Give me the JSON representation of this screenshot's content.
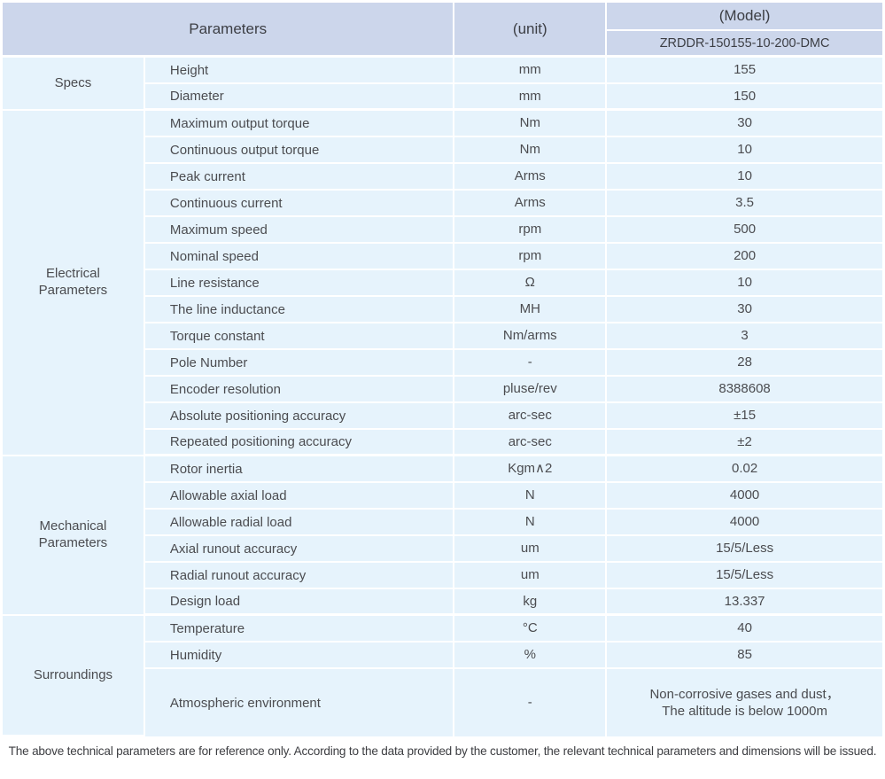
{
  "colors": {
    "header_bg": "#ccd6eb",
    "row_bg": "#e6f3fc",
    "text": "#4b4c50"
  },
  "header": {
    "parameters": "Parameters",
    "unit": "(unit)",
    "model": "(Model)",
    "model_number": "ZRDDR-150155-10-200-DMC"
  },
  "sections": [
    {
      "label": "Specs",
      "rows": [
        {
          "name": "Height",
          "unit": "mm",
          "value": "155"
        },
        {
          "name": "Diameter",
          "unit": "mm",
          "value": "150"
        }
      ]
    },
    {
      "label": "Electrical\nParameters",
      "rows": [
        {
          "name": "Maximum output torque",
          "unit": "Nm",
          "value": "30"
        },
        {
          "name": "Continuous output torque",
          "unit": "Nm",
          "value": "10"
        },
        {
          "name": "Peak current",
          "unit": "Arms",
          "value": "10"
        },
        {
          "name": "Continuous current",
          "unit": "Arms",
          "value": "3.5"
        },
        {
          "name": "Maximum speed",
          "unit": "rpm",
          "value": "500"
        },
        {
          "name": "Nominal speed",
          "unit": "rpm",
          "value": "200"
        },
        {
          "name": "Line resistance",
          "unit": "Ω",
          "value": "10"
        },
        {
          "name": "The line inductance",
          "unit": "MH",
          "value": "30"
        },
        {
          "name": "Torque constant",
          "unit": "Nm/arms",
          "value": "3"
        },
        {
          "name": "Pole Number",
          "unit": "-",
          "value": "28"
        },
        {
          "name": "Encoder resolution",
          "unit": "pluse/rev",
          "value": "8388608"
        },
        {
          "name": "Absolute positioning accuracy",
          "unit": "arc-sec",
          "value": "±15"
        },
        {
          "name": "Repeated positioning accuracy",
          "unit": "arc-sec",
          "value": "±2"
        }
      ]
    },
    {
      "label": "Mechanical\nParameters",
      "rows": [
        {
          "name": "Rotor inertia",
          "unit": "Kgm∧2",
          "value": "0.02"
        },
        {
          "name": "Allowable axial load",
          "unit": "N",
          "value": "4000"
        },
        {
          "name": "Allowable radial load",
          "unit": "N",
          "value": "4000"
        },
        {
          "name": "Axial runout accuracy",
          "unit": "um",
          "value": "15/5/Less"
        },
        {
          "name": "Radial runout accuracy",
          "unit": "um",
          "value": "15/5/Less"
        },
        {
          "name": "Design load",
          "unit": "kg",
          "value": "13.337"
        }
      ]
    },
    {
      "label": "Surroundings",
      "rows": [
        {
          "name": "Temperature",
          "unit": "°C",
          "value": "40"
        },
        {
          "name": "Humidity",
          "unit": "%",
          "value": "85"
        },
        {
          "name": "Atmospheric environment",
          "unit": "-",
          "value": "Non-corrosive gases and dust，\nThe altitude is below 1000m"
        }
      ]
    }
  ],
  "footnote": "The above technical parameters are for reference only. According to the data provided by the customer, the relevant technical parameters and dimensions will be issued."
}
